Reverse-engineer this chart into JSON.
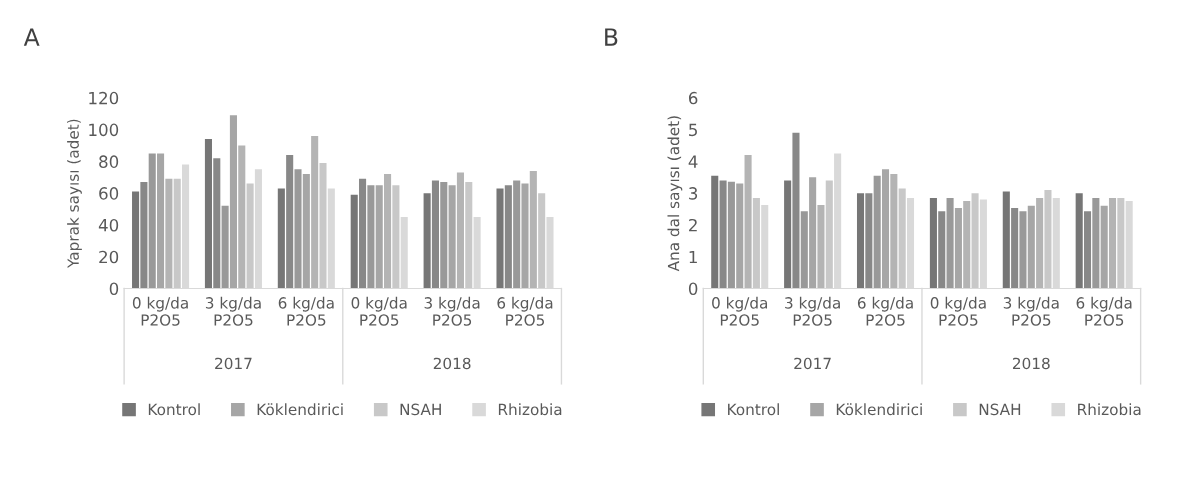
{
  "chart_data": [
    {
      "type": "bar",
      "title": "A",
      "ylabel": "Yaprak sayısı (adet)",
      "categories": [
        "0 kg/da\nP2O5",
        "3 kg/da\nP2O5",
        "6 kg/da\nP2O5",
        "0 kg/da\nP2O5",
        "3 kg/da\nP2O5",
        "6 kg/da\nP2O5"
      ],
      "annotations": [
        "2017",
        "2018"
      ],
      "series": [
        {
          "name": "Kontrol",
          "color": "#767676",
          "values": [
            61,
            94,
            63,
            59,
            60,
            63
          ]
        },
        {
          "color": "#888888",
          "values": [
            67,
            82,
            84,
            69,
            68,
            65
          ]
        },
        {
          "color": "#999999",
          "values": [
            85,
            52,
            75,
            65,
            67,
            68
          ]
        },
        {
          "name": "Köklendirici",
          "color": "#a6a6a6",
          "values": [
            85,
            109,
            72,
            65,
            65,
            66
          ]
        },
        {
          "color": "#b4b4b4",
          "values": [
            69,
            90,
            96,
            72,
            73,
            74
          ]
        },
        {
          "name": "NSAH",
          "color": "#c8c8c8",
          "values": [
            69,
            66,
            79,
            65,
            67,
            60
          ]
        },
        {
          "name": "Rhizobia",
          "color": "#d9d9d9",
          "values": [
            78,
            75,
            63,
            45,
            45,
            45
          ]
        }
      ],
      "ylim": [
        0,
        120
      ],
      "yticks": [
        0,
        20,
        40,
        60,
        80,
        100,
        120
      ],
      "grid": false,
      "legend": "bottom"
    },
    {
      "type": "bar",
      "title": "B",
      "ylabel": "Ana dal sayısı (adet)",
      "categories": [
        "0 kg/da\nP2O5",
        "3 kg/da\nP2O5",
        "6 kg/da\nP2O5",
        "0 kg/da\nP2O5",
        "3 kg/da\nP2O5",
        "6 kg/da\nP2O5"
      ],
      "annotations": [
        "2017",
        "2018"
      ],
      "series": [
        {
          "name": "Kontrol",
          "color": "#767676",
          "values": [
            3.55,
            3.4,
            3.0,
            2.85,
            3.05,
            3.0
          ]
        },
        {
          "color": "#888888",
          "values": [
            3.4,
            4.9,
            3.0,
            2.43,
            2.53,
            2.43
          ]
        },
        {
          "color": "#999999",
          "values": [
            3.36,
            2.43,
            3.55,
            2.85,
            2.43,
            2.85
          ]
        },
        {
          "name": "Köklendirici",
          "color": "#a6a6a6",
          "values": [
            3.3,
            3.5,
            3.75,
            2.53,
            2.6,
            2.6
          ]
        },
        {
          "color": "#b4b4b4",
          "values": [
            4.2,
            2.63,
            3.6,
            2.75,
            2.85,
            2.85
          ]
        },
        {
          "name": "NSAH",
          "color": "#c8c8c8",
          "values": [
            2.85,
            3.4,
            3.15,
            3.0,
            3.1,
            2.85
          ]
        },
        {
          "name": "Rhizobia",
          "color": "#d9d9d9",
          "values": [
            2.63,
            4.25,
            2.85,
            2.8,
            2.85,
            2.75
          ]
        }
      ],
      "ylim": [
        0,
        6
      ],
      "yticks": [
        0,
        1,
        2,
        3,
        4,
        5,
        6
      ],
      "grid": false,
      "legend": "bottom"
    }
  ]
}
